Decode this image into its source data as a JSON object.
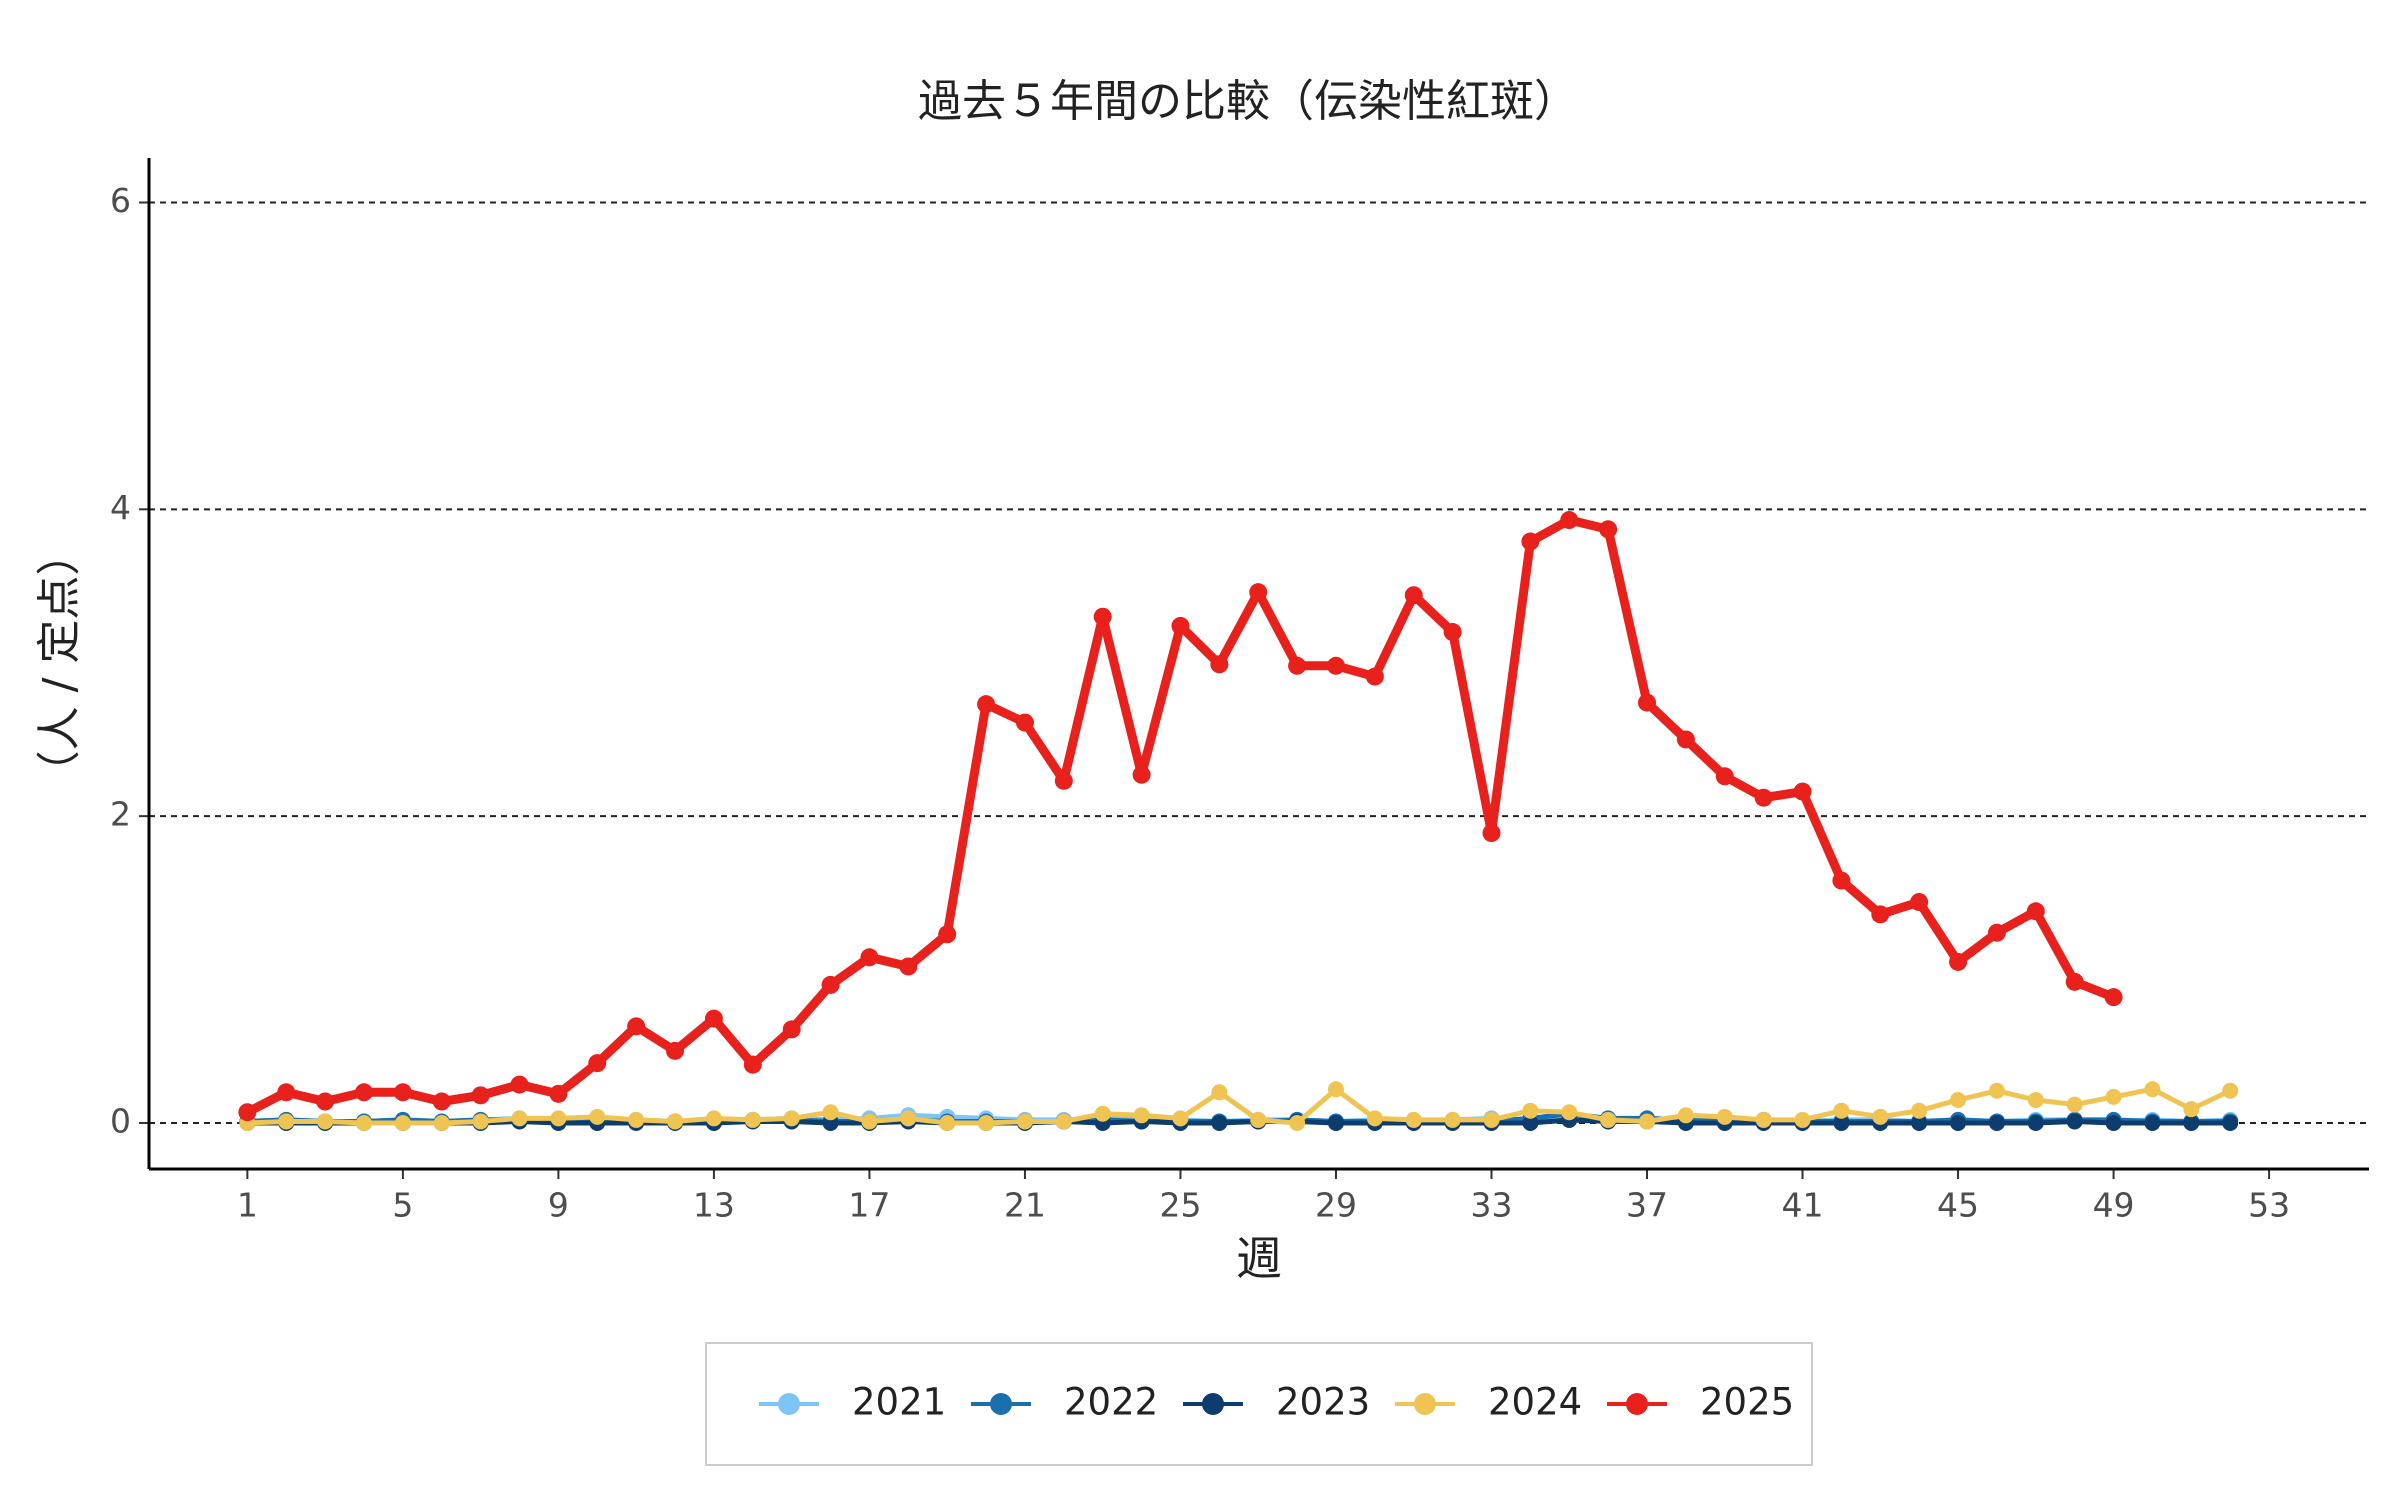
{
  "chart_data": {
    "type": "line",
    "title": "過去５年間の比較（伝染性紅斑）",
    "xlabel": "週",
    "ylabel": "（人 / 定点）",
    "x": [
      1,
      2,
      3,
      4,
      5,
      6,
      7,
      8,
      9,
      10,
      11,
      12,
      13,
      14,
      15,
      16,
      17,
      18,
      19,
      20,
      21,
      22,
      23,
      24,
      25,
      26,
      27,
      28,
      29,
      30,
      31,
      32,
      33,
      34,
      35,
      36,
      37,
      38,
      39,
      40,
      41,
      42,
      43,
      44,
      45,
      46,
      47,
      48,
      49,
      50,
      51,
      52
    ],
    "series": [
      {
        "name": "2021",
        "color": "#7fc4f6",
        "values": [
          0.01,
          0.02,
          0.01,
          0.01,
          0.02,
          0.01,
          0.02,
          0.03,
          0.02,
          0.03,
          0.02,
          0.01,
          0.02,
          0.02,
          0.03,
          0.02,
          0.03,
          0.05,
          0.04,
          0.03,
          0.02,
          0.02,
          0.03,
          0.02,
          0.02,
          0.01,
          0.02,
          0.02,
          0.01,
          0.02,
          0.01,
          0.02,
          0.03,
          0.02,
          0.03,
          0.02,
          0.02,
          0.03,
          0.02,
          0.02,
          0.01,
          0.02,
          0.02,
          0.01,
          0.02,
          0.01,
          0.02,
          0.02,
          0.01,
          0.02,
          0.01,
          0.02
        ]
      },
      {
        "name": "2022",
        "color": "#1a6faf",
        "values": [
          0.01,
          0.02,
          0.01,
          0.01,
          0.02,
          0.01,
          0.02,
          0.02,
          0.02,
          0.01,
          0.01,
          0.01,
          0.01,
          0.02,
          0.02,
          0.01,
          0.01,
          0.02,
          0.01,
          0.01,
          0.01,
          0.01,
          0.02,
          0.01,
          0.01,
          0.01,
          0.01,
          0.02,
          0.01,
          0.01,
          0.01,
          0.01,
          0.01,
          0.03,
          0.06,
          0.03,
          0.03,
          0.02,
          0.02,
          0.02,
          0.01,
          0.01,
          0.01,
          0.01,
          0.02,
          0.01,
          0.01,
          0.02,
          0.02,
          0.01,
          0.01,
          0.01
        ]
      },
      {
        "name": "2023",
        "color": "#0d3d6e",
        "values": [
          0,
          0,
          0,
          0,
          0,
          0,
          0,
          0.01,
          0,
          0,
          0,
          0,
          0,
          0.01,
          0.01,
          0,
          0,
          0.01,
          0,
          0,
          0,
          0.01,
          0,
          0.01,
          0,
          0,
          0.01,
          0.01,
          0,
          0,
          0,
          0,
          0,
          0,
          0.02,
          0.01,
          0.01,
          0,
          0,
          0,
          0,
          0,
          0,
          0,
          0,
          0,
          0,
          0.01,
          0,
          0,
          0,
          0
        ]
      },
      {
        "name": "2024",
        "color": "#f0c453",
        "values": [
          0.0,
          0.01,
          0.01,
          0.0,
          0.0,
          0.0,
          0.01,
          0.03,
          0.03,
          0.04,
          0.02,
          0.01,
          0.03,
          0.02,
          0.03,
          0.07,
          0.01,
          0.03,
          0.0,
          0.0,
          0.01,
          0.01,
          0.06,
          0.05,
          0.03,
          0.2,
          0.02,
          0.0,
          0.22,
          0.03,
          0.02,
          0.02,
          0.02,
          0.08,
          0.07,
          0.02,
          0.01,
          0.05,
          0.04,
          0.02,
          0.02,
          0.08,
          0.04,
          0.08,
          0.15,
          0.21,
          0.15,
          0.12,
          0.17,
          0.22,
          0.09,
          0.21
        ]
      },
      {
        "name": "2025",
        "color": "#e8211c",
        "values": [
          0.07,
          0.2,
          0.14,
          0.2,
          0.2,
          0.14,
          0.18,
          0.25,
          0.19,
          0.39,
          0.63,
          0.47,
          0.68,
          0.38,
          0.61,
          0.9,
          1.08,
          1.02,
          1.23,
          2.73,
          2.61,
          2.23,
          3.3,
          2.27,
          3.24,
          2.99,
          3.46,
          2.98,
          2.98,
          2.91,
          3.44,
          3.2,
          1.89,
          3.79,
          3.93,
          3.87,
          2.74,
          2.5,
          2.26,
          2.12,
          2.16,
          1.58,
          1.36,
          1.44,
          1.05,
          1.24,
          1.38,
          0.92,
          0.82,
          null,
          null,
          null
        ]
      }
    ],
    "xlim": [
      -1.53,
      55.57
    ],
    "xticks": [
      1,
      5,
      9,
      13,
      17,
      21,
      25,
      29,
      33,
      37,
      41,
      45,
      49,
      53
    ],
    "ylim": [
      -0.3,
      6.29
    ],
    "yticks": [
      0,
      2,
      4,
      6
    ],
    "grid": true,
    "legend": "bottom"
  }
}
